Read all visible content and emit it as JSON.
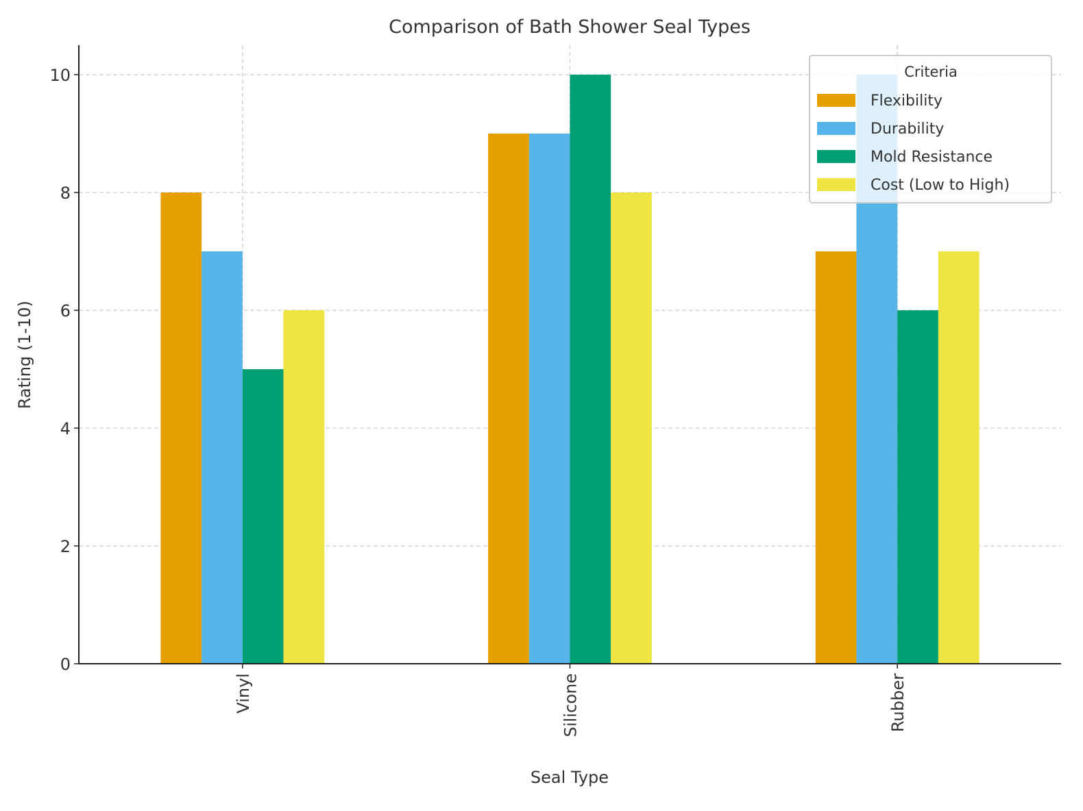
{
  "chart_data": {
    "type": "bar",
    "title": "Comparison of Bath Shower Seal Types",
    "xlabel": "Seal Type",
    "ylabel": "Rating (1-10)",
    "categories": [
      "Vinyl",
      "Silicone",
      "Rubber"
    ],
    "series": [
      {
        "name": "Flexibility",
        "values": [
          8,
          9,
          7
        ],
        "color": "#E69F00"
      },
      {
        "name": "Durability",
        "values": [
          7,
          9,
          10
        ],
        "color": "#56B4E9"
      },
      {
        "name": "Mold Resistance",
        "values": [
          5,
          10,
          6
        ],
        "color": "#009E73"
      },
      {
        "name": "Cost (Low to High)",
        "values": [
          6,
          8,
          7
        ],
        "color": "#F0E442"
      }
    ],
    "ylim": [
      0,
      10.5
    ],
    "yticks": [
      "0",
      "2",
      "4",
      "6",
      "8",
      "10"
    ],
    "grid": true,
    "x_tick_rotation": 90,
    "legend": {
      "title": "Criteria",
      "placement": "top-right"
    }
  }
}
